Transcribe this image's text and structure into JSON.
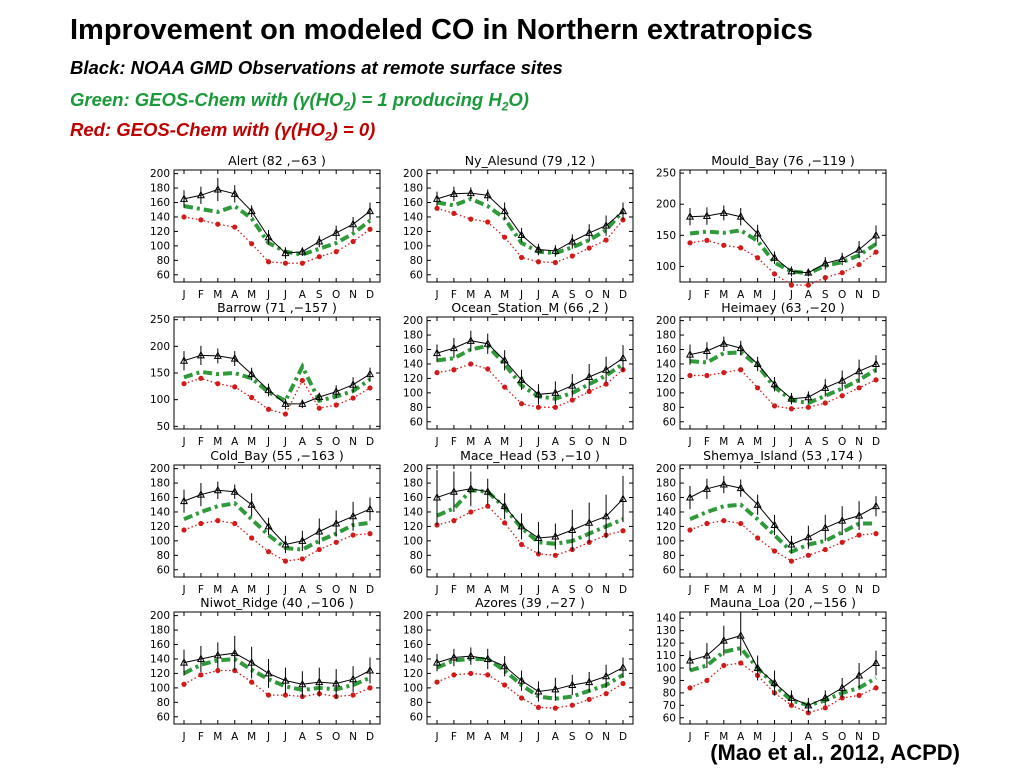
{
  "header": {
    "title": "Improvement on modeled CO in Northern extratropics",
    "line_black": "Black: NOAA GMD Observations at remote surface sites",
    "line_green_a": "Green: GEOS-Chem with (γ(HO",
    "line_green_sub1": "2",
    "line_green_b": ") = 1 producing H",
    "line_green_sub2": "2",
    "line_green_c": "O)",
    "line_red_a": "Red: GEOS-Chem with (γ(HO",
    "line_red_sub": "2",
    "line_red_b": ") = 0)"
  },
  "citation": "(Mao et al., 2012, ACPD)",
  "colors": {
    "obs": "#000000",
    "green": "#2e9a3a",
    "red": "#d11a1a"
  },
  "chart_data": [
    {
      "type": "line",
      "title": "Alert (82 ,−63 )",
      "categories": [
        "J",
        "F",
        "M",
        "A",
        "M",
        "J",
        "J",
        "A",
        "S",
        "O",
        "N",
        "D"
      ],
      "yticks": [
        60,
        80,
        100,
        120,
        140,
        160,
        180,
        200
      ],
      "ylim": [
        50,
        205
      ],
      "obs": [
        165,
        170,
        178,
        172,
        148,
        112,
        90,
        92,
        106,
        118,
        130,
        148
      ],
      "green": [
        155,
        151,
        147,
        155,
        138,
        104,
        92,
        88,
        96,
        104,
        117,
        135
      ],
      "red": [
        140,
        136,
        130,
        126,
        103,
        78,
        76,
        76,
        85,
        92,
        106,
        123
      ],
      "obs_err": [
        12,
        12,
        16,
        12,
        8,
        10,
        8,
        6,
        8,
        10,
        10,
        12
      ]
    },
    {
      "type": "line",
      "title": "Ny_Alesund (79 ,12 )",
      "categories": [
        "J",
        "F",
        "M",
        "A",
        "M",
        "J",
        "J",
        "A",
        "S",
        "O",
        "N",
        "D"
      ],
      "yticks": [
        60,
        80,
        100,
        120,
        140,
        160,
        180,
        200
      ],
      "ylim": [
        50,
        205
      ],
      "obs": [
        165,
        172,
        173,
        170,
        148,
        115,
        95,
        93,
        106,
        118,
        128,
        148
      ],
      "green": [
        160,
        156,
        165,
        155,
        138,
        104,
        92,
        90,
        98,
        108,
        122,
        148
      ],
      "red": [
        152,
        145,
        137,
        133,
        112,
        84,
        78,
        77,
        86,
        97,
        108,
        136
      ],
      "obs_err": [
        10,
        10,
        8,
        8,
        12,
        10,
        8,
        8,
        10,
        12,
        14,
        12
      ]
    },
    {
      "type": "line",
      "title": "Mould_Bay (76 ,−119 )",
      "categories": [
        "J",
        "F",
        "M",
        "A",
        "M",
        "J",
        "J",
        "A",
        "S",
        "O",
        "N",
        "D"
      ],
      "yticks": [
        100,
        150,
        200,
        250
      ],
      "ylim": [
        75,
        255
      ],
      "obs": [
        180,
        181,
        186,
        180,
        153,
        114,
        92,
        90,
        105,
        112,
        127,
        150
      ],
      "green": [
        153,
        156,
        154,
        158,
        141,
        106,
        92,
        89,
        101,
        107,
        118,
        136
      ],
      "red": [
        138,
        142,
        134,
        130,
        114,
        88,
        70,
        70,
        82,
        90,
        103,
        123
      ],
      "obs_err": [
        14,
        14,
        12,
        14,
        14,
        10,
        8,
        6,
        10,
        10,
        14,
        16
      ]
    },
    {
      "type": "line",
      "title": "Barrow (71 ,−157 )",
      "categories": [
        "J",
        "F",
        "M",
        "A",
        "M",
        "J",
        "J",
        "A",
        "S",
        "O",
        "N",
        "D"
      ],
      "yticks": [
        50,
        100,
        150,
        200,
        250
      ],
      "ylim": [
        45,
        255
      ],
      "obs": [
        173,
        183,
        182,
        177,
        148,
        118,
        92,
        92,
        105,
        115,
        128,
        148
      ],
      "green": [
        142,
        152,
        148,
        150,
        140,
        114,
        98,
        162,
        98,
        106,
        116,
        138
      ],
      "red": [
        130,
        140,
        130,
        124,
        104,
        82,
        73,
        136,
        84,
        90,
        103,
        122
      ],
      "obs_err": [
        18,
        18,
        14,
        14,
        12,
        12,
        10,
        8,
        8,
        12,
        14,
        12
      ]
    },
    {
      "type": "line",
      "title": "Ocean_Station_M (66 ,2 )",
      "categories": [
        "J",
        "F",
        "M",
        "A",
        "M",
        "J",
        "J",
        "A",
        "S",
        "O",
        "N",
        "D"
      ],
      "yticks": [
        60,
        80,
        100,
        120,
        140,
        160,
        180,
        200
      ],
      "ylim": [
        50,
        205
      ],
      "obs": [
        155,
        162,
        172,
        168,
        145,
        118,
        98,
        100,
        110,
        122,
        132,
        148
      ],
      "green": [
        145,
        148,
        160,
        165,
        140,
        110,
        95,
        92,
        100,
        112,
        124,
        140
      ],
      "red": [
        128,
        132,
        140,
        133,
        108,
        85,
        80,
        80,
        90,
        102,
        112,
        132
      ],
      "obs_err": [
        12,
        14,
        14,
        14,
        14,
        14,
        14,
        16,
        16,
        18,
        18,
        18
      ]
    },
    {
      "type": "line",
      "title": "Heimaey (63 ,−20 )",
      "categories": [
        "J",
        "F",
        "M",
        "A",
        "M",
        "J",
        "J",
        "A",
        "S",
        "O",
        "N",
        "D"
      ],
      "yticks": [
        60,
        80,
        100,
        120,
        140,
        160,
        180,
        200
      ],
      "ylim": [
        50,
        205
      ],
      "obs": [
        153,
        158,
        168,
        162,
        140,
        112,
        92,
        94,
        107,
        117,
        130,
        140
      ],
      "green": [
        144,
        142,
        155,
        156,
        138,
        108,
        90,
        86,
        96,
        106,
        118,
        132
      ],
      "red": [
        124,
        124,
        128,
        132,
        107,
        82,
        78,
        80,
        86,
        96,
        107,
        118
      ],
      "obs_err": [
        14,
        12,
        10,
        10,
        10,
        10,
        8,
        8,
        12,
        14,
        16,
        12
      ]
    },
    {
      "type": "line",
      "title": "Cold_Bay (55 ,−163 )",
      "categories": [
        "J",
        "F",
        "M",
        "A",
        "M",
        "J",
        "J",
        "A",
        "S",
        "O",
        "N",
        "D"
      ],
      "yticks": [
        60,
        80,
        100,
        120,
        140,
        160,
        180,
        200
      ],
      "ylim": [
        50,
        205
      ],
      "obs": [
        155,
        164,
        170,
        168,
        150,
        120,
        95,
        100,
        113,
        124,
        134,
        144
      ],
      "green": [
        130,
        140,
        148,
        152,
        130,
        108,
        90,
        88,
        100,
        110,
        122,
        125
      ],
      "red": [
        115,
        124,
        128,
        124,
        104,
        85,
        72,
        75,
        88,
        98,
        108,
        110
      ],
      "obs_err": [
        16,
        16,
        12,
        10,
        16,
        12,
        12,
        14,
        18,
        18,
        20,
        16
      ]
    },
    {
      "type": "line",
      "title": "Mace_Head (53 ,−10 )",
      "categories": [
        "J",
        "F",
        "M",
        "A",
        "M",
        "J",
        "J",
        "A",
        "S",
        "O",
        "N",
        "D"
      ],
      "yticks": [
        60,
        80,
        100,
        120,
        140,
        160,
        180,
        200
      ],
      "ylim": [
        50,
        205
      ],
      "obs": [
        160,
        168,
        172,
        168,
        148,
        120,
        104,
        106,
        115,
        125,
        134,
        158
      ],
      "green": [
        135,
        145,
        170,
        168,
        146,
        118,
        98,
        96,
        100,
        110,
        120,
        130
      ],
      "red": [
        122,
        128,
        140,
        148,
        125,
        95,
        82,
        80,
        88,
        98,
        108,
        114
      ],
      "obs_err": [
        38,
        28,
        24,
        18,
        18,
        18,
        22,
        18,
        28,
        28,
        30,
        32
      ]
    },
    {
      "type": "line",
      "title": "Shemya_Island (53 ,174 )",
      "categories": [
        "J",
        "F",
        "M",
        "A",
        "M",
        "J",
        "J",
        "A",
        "S",
        "O",
        "N",
        "D"
      ],
      "yticks": [
        60,
        80,
        100,
        120,
        140,
        160,
        180,
        200
      ],
      "ylim": [
        50,
        205
      ],
      "obs": [
        160,
        172,
        178,
        173,
        150,
        122,
        95,
        105,
        118,
        128,
        135,
        148
      ],
      "green": [
        130,
        140,
        148,
        150,
        130,
        108,
        85,
        95,
        100,
        112,
        124,
        124
      ],
      "red": [
        115,
        124,
        128,
        124,
        104,
        86,
        72,
        80,
        88,
        98,
        108,
        110
      ],
      "obs_err": [
        16,
        14,
        12,
        12,
        14,
        14,
        12,
        16,
        18,
        20,
        20,
        14
      ]
    },
    {
      "type": "line",
      "title": "Niwot_Ridge (40 ,−106 )",
      "categories": [
        "J",
        "F",
        "M",
        "A",
        "M",
        "J",
        "J",
        "A",
        "S",
        "O",
        "N",
        "D"
      ],
      "yticks": [
        60,
        80,
        100,
        120,
        140,
        160,
        180,
        200
      ],
      "ylim": [
        50,
        205
      ],
      "obs": [
        135,
        140,
        145,
        148,
        135,
        120,
        110,
        105,
        108,
        106,
        112,
        124
      ],
      "green": [
        120,
        132,
        138,
        140,
        125,
        112,
        102,
        97,
        100,
        98,
        104,
        114
      ],
      "red": [
        105,
        118,
        124,
        124,
        108,
        90,
        90,
        88,
        92,
        88,
        90,
        100
      ],
      "obs_err": [
        18,
        18,
        18,
        24,
        22,
        20,
        18,
        18,
        20,
        20,
        18,
        18
      ]
    },
    {
      "type": "line",
      "title": "Azores (39 ,−27 )",
      "categories": [
        "J",
        "F",
        "M",
        "A",
        "M",
        "J",
        "J",
        "A",
        "S",
        "O",
        "N",
        "D"
      ],
      "yticks": [
        60,
        80,
        100,
        120,
        140,
        160,
        180,
        200
      ],
      "ylim": [
        50,
        205
      ],
      "obs": [
        135,
        142,
        144,
        140,
        130,
        110,
        95,
        98,
        104,
        108,
        116,
        128
      ],
      "green": [
        128,
        138,
        140,
        140,
        124,
        104,
        88,
        85,
        88,
        96,
        104,
        118
      ],
      "red": [
        108,
        118,
        120,
        118,
        104,
        86,
        73,
        72,
        76,
        84,
        92,
        106
      ],
      "obs_err": [
        12,
        12,
        12,
        14,
        14,
        14,
        14,
        16,
        14,
        14,
        16,
        14
      ]
    },
    {
      "type": "line",
      "title": "Mauna_Loa (20 ,−156 )",
      "categories": [
        "J",
        "F",
        "M",
        "A",
        "M",
        "J",
        "J",
        "A",
        "S",
        "O",
        "N",
        "D"
      ],
      "yticks": [
        60,
        70,
        80,
        90,
        100,
        110,
        120,
        130,
        140
      ],
      "ylim": [
        55,
        145
      ],
      "obs": [
        106,
        110,
        122,
        126,
        100,
        88,
        76,
        70,
        76,
        84,
        94,
        104
      ],
      "green": [
        98,
        102,
        113,
        116,
        100,
        86,
        74,
        70,
        74,
        80,
        84,
        92
      ],
      "red": [
        84,
        90,
        102,
        104,
        94,
        80,
        70,
        64,
        68,
        76,
        78,
        84
      ],
      "obs_err": [
        8,
        10,
        12,
        16,
        10,
        10,
        6,
        6,
        6,
        8,
        10,
        10
      ]
    }
  ]
}
